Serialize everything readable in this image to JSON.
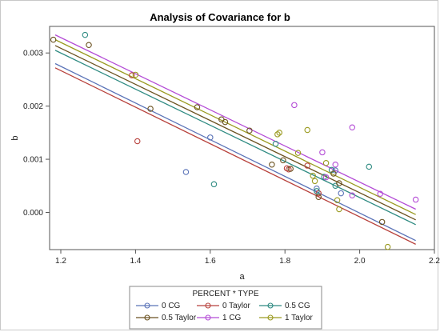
{
  "chart_data": {
    "type": "scatter",
    "title": "Analysis of Covariance for b",
    "xlabel": "a",
    "ylabel": "b",
    "xlim": [
      1.17,
      2.2
    ],
    "ylim": [
      -0.0007,
      0.0035
    ],
    "x_ticks": [
      1.2,
      1.4,
      1.6,
      1.8,
      2.0,
      2.2
    ],
    "x_tick_labels": [
      "1.2",
      "1.4",
      "1.6",
      "1.8",
      "2.0",
      "2.2"
    ],
    "y_ticks": [
      0.0,
      0.001,
      0.002,
      0.003
    ],
    "y_tick_labels": [
      "0.000",
      "0.001",
      "0.002",
      "0.003"
    ],
    "grid": false,
    "legend": {
      "title": "PERCENT * TYPE",
      "placement": "bottom",
      "entries": [
        {
          "label": "0 CG",
          "color": "#5b74b8"
        },
        {
          "label": "0 Taylor",
          "color": "#b8423d"
        },
        {
          "label": "0.5 CG",
          "color": "#2f8b82"
        },
        {
          "label": "0.5 Taylor",
          "color": "#6b5220"
        },
        {
          "label": "1 CG",
          "color": "#b44cd6"
        },
        {
          "label": "1 Taylor",
          "color": "#9a9a20"
        }
      ]
    },
    "series": [
      {
        "name": "0 CG",
        "color": "#5b74b8",
        "line": [
          [
            1.185,
            0.0028
          ],
          [
            2.15,
            -0.00053
          ]
        ],
        "points": [
          [
            1.535,
            0.00076
          ],
          [
            1.6,
            0.00141
          ],
          [
            1.885,
            0.00045
          ],
          [
            1.935,
            0.00079
          ],
          [
            1.95,
            0.00036
          ]
        ]
      },
      {
        "name": "0 Taylor",
        "color": "#b8423d",
        "line": [
          [
            1.185,
            0.00272
          ],
          [
            2.15,
            -0.0006
          ]
        ],
        "points": [
          [
            1.39,
            0.00258
          ],
          [
            1.405,
            0.00134
          ],
          [
            1.805,
            0.00083
          ],
          [
            1.81,
            0.00081
          ],
          [
            1.86,
            0.00088
          ],
          [
            1.89,
            0.00036
          ]
        ]
      },
      {
        "name": "0.5 CG",
        "color": "#2f8b82",
        "line": [
          [
            1.185,
            0.00305
          ],
          [
            2.15,
            -0.00023
          ]
        ],
        "points": [
          [
            1.265,
            0.00334
          ],
          [
            1.61,
            0.00053
          ],
          [
            1.775,
            0.00129
          ],
          [
            1.885,
            0.0004
          ],
          [
            1.905,
            0.00067
          ],
          [
            1.925,
            0.0008
          ],
          [
            1.935,
            0.0005
          ],
          [
            2.025,
            0.00086
          ]
        ]
      },
      {
        "name": "0.5 Taylor",
        "color": "#6b5220",
        "line": [
          [
            1.185,
            0.00314
          ],
          [
            2.15,
            -0.00014
          ]
        ],
        "points": [
          [
            1.18,
            0.00325
          ],
          [
            1.275,
            0.00315
          ],
          [
            1.44,
            0.00195
          ],
          [
            1.565,
            0.00198
          ],
          [
            1.63,
            0.00175
          ],
          [
            1.64,
            0.0017
          ],
          [
            1.705,
            0.00154
          ],
          [
            1.765,
            0.0009
          ],
          [
            1.795,
            0.00098
          ],
          [
            1.815,
            0.00082
          ],
          [
            1.89,
            0.00029
          ],
          [
            1.93,
            0.00073
          ],
          [
            1.945,
            0.00055
          ],
          [
            2.06,
            -0.00018
          ]
        ]
      },
      {
        "name": "1 CG",
        "color": "#b44cd6",
        "line": [
          [
            1.185,
            0.00334
          ],
          [
            2.15,
            6e-05
          ]
        ],
        "points": [
          [
            1.825,
            0.00202
          ],
          [
            1.9,
            0.00113
          ],
          [
            1.91,
            0.00066
          ],
          [
            1.935,
            0.0009
          ],
          [
            1.98,
            0.0016
          ],
          [
            1.98,
            0.00032
          ],
          [
            2.055,
            0.00035
          ],
          [
            2.15,
            0.00024
          ]
        ]
      },
      {
        "name": "1 Taylor",
        "color": "#9a9a20",
        "line": [
          [
            1.185,
            0.00325
          ],
          [
            2.15,
            -4e-05
          ]
        ],
        "points": [
          [
            1.4,
            0.00259
          ],
          [
            1.78,
            0.00147
          ],
          [
            1.785,
            0.0015
          ],
          [
            1.835,
            0.00112
          ],
          [
            1.86,
            0.00155
          ],
          [
            1.875,
            0.00069
          ],
          [
            1.88,
            0.00059
          ],
          [
            1.91,
            0.00093
          ],
          [
            1.94,
            0.00023
          ],
          [
            1.945,
            6e-05
          ],
          [
            2.075,
            -0.00065
          ]
        ]
      }
    ]
  }
}
